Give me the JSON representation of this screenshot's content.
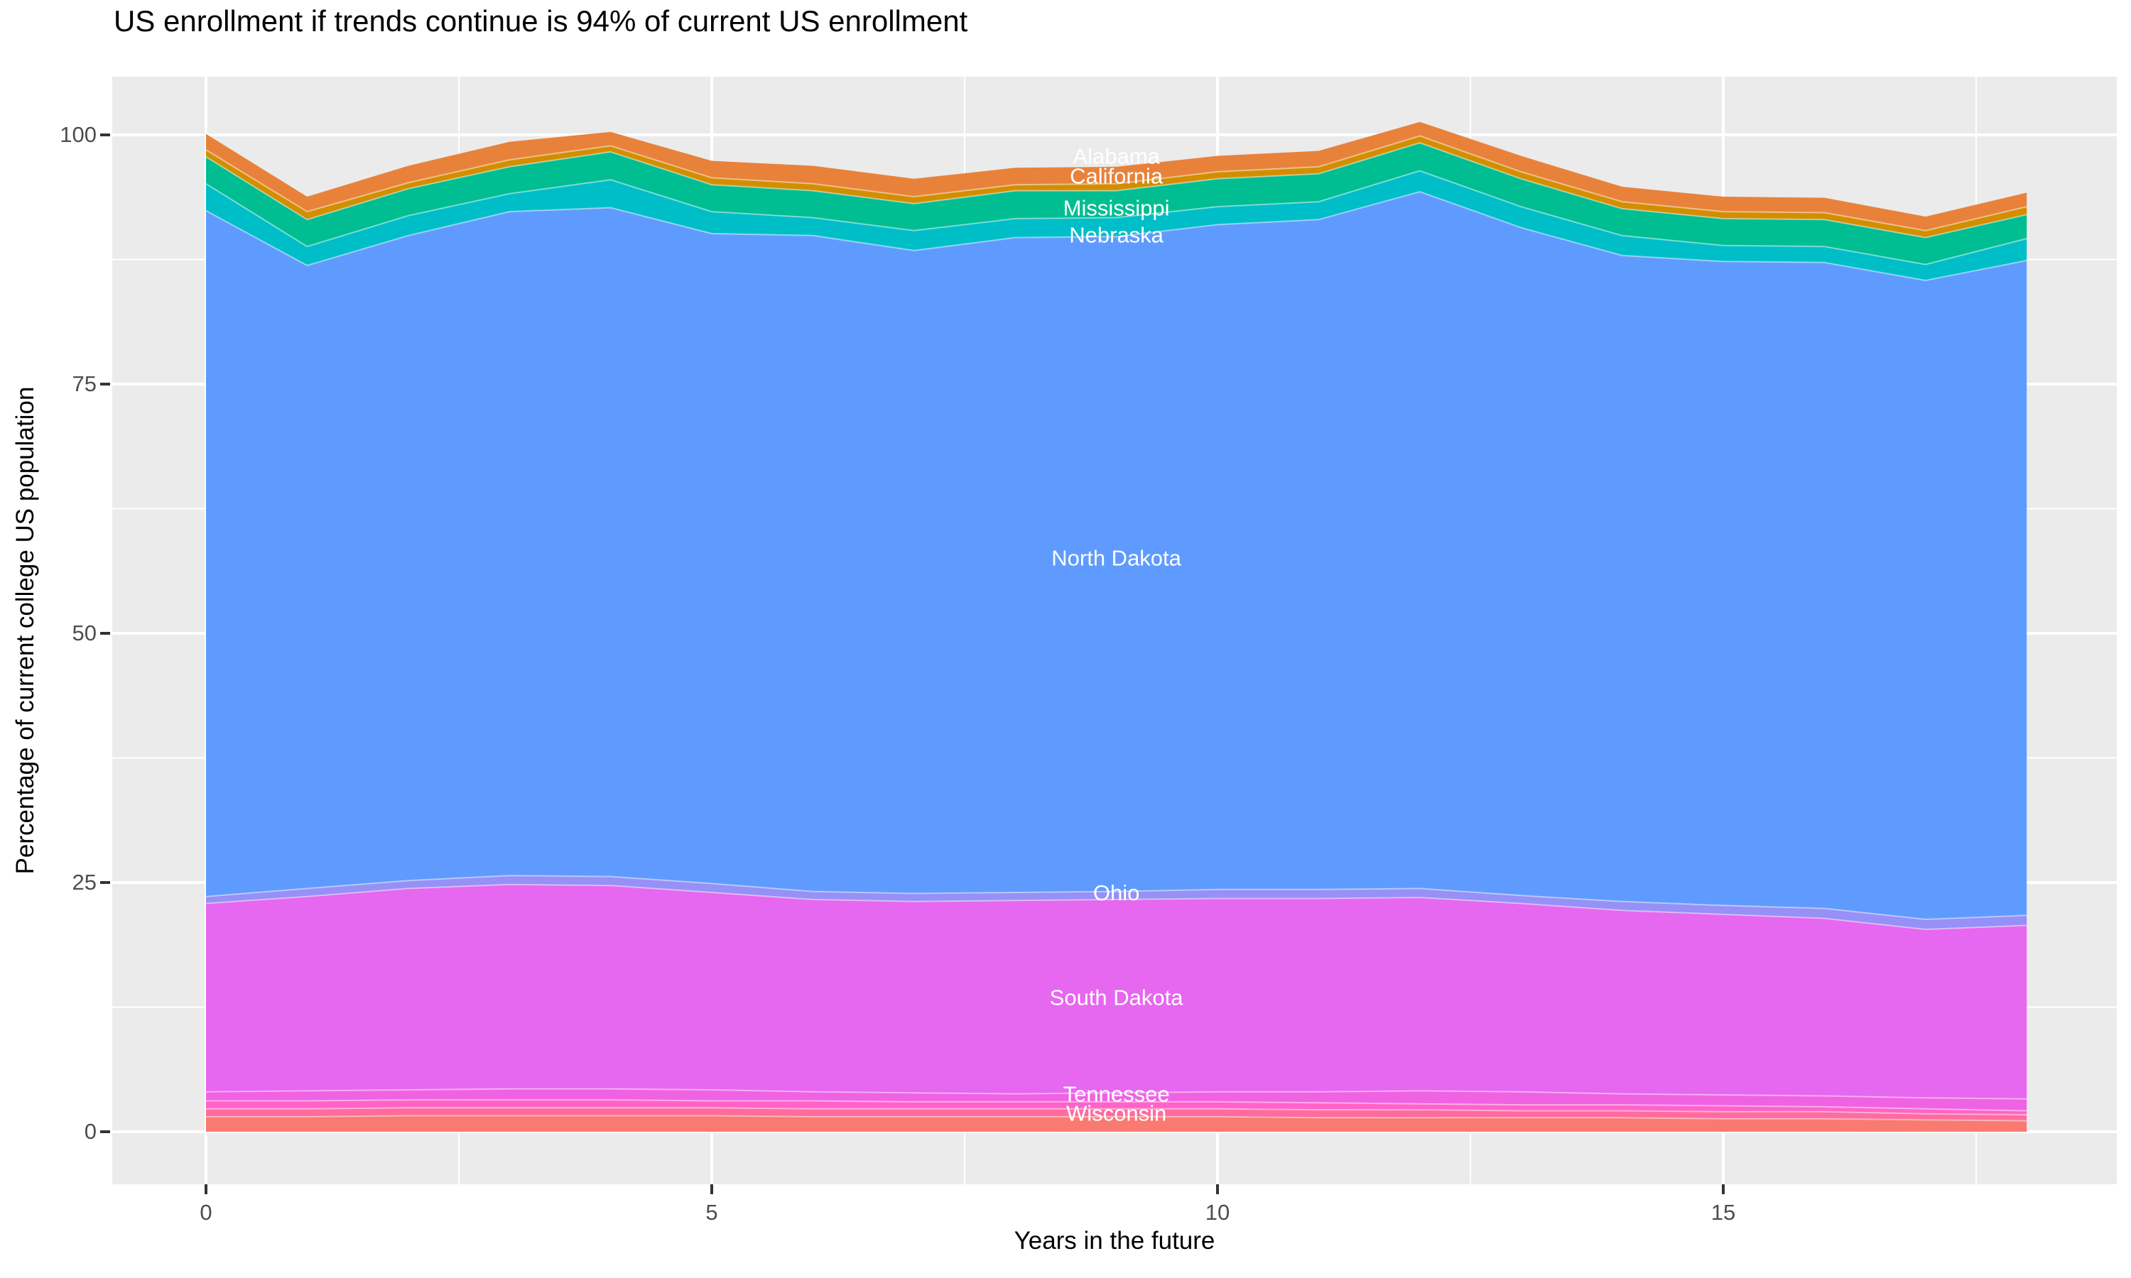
{
  "title": "US enrollment if trends continue is 94% of current US enrollment",
  "axes": {
    "x": {
      "label": "Years in the future",
      "ticks": [
        "0",
        "5",
        "10",
        "15"
      ],
      "range": [
        0,
        18
      ]
    },
    "y": {
      "label": "Percentage of current college US population",
      "ticks": [
        "0",
        "25",
        "50",
        "75",
        "100"
      ],
      "range": [
        0,
        100
      ]
    }
  },
  "colors": {
    "panel_background": "#EBEBEB",
    "gridline": "#FFFFFF",
    "axis_text": "#4D4D4D",
    "tick_mark": "#333333",
    "title_text": "#000000",
    "band_label_text": "#FFFFFF"
  },
  "chart_data": {
    "type": "area",
    "stacked": true,
    "title": "US enrollment if trends continue is 94% of current US enrollment",
    "xlabel": "Years in the future",
    "ylabel": "Percentage of current college US population",
    "x": [
      0,
      1,
      2,
      3,
      4,
      5,
      6,
      7,
      8,
      9,
      10,
      11,
      12,
      13,
      14,
      15,
      16,
      17,
      18
    ],
    "xlim": [
      0,
      18
    ],
    "ylim": [
      0,
      101.5
    ],
    "x_ticks": [
      0,
      5,
      10,
      15
    ],
    "x_minor_ticks": [
      2.5,
      7.5,
      12.5,
      17.5
    ],
    "y_ticks": [
      0,
      25,
      50,
      75,
      100
    ],
    "y_minor_ticks": [
      12.5,
      37.5,
      62.5,
      87.5
    ],
    "grid": true,
    "legend_position": "none",
    "series": [
      {
        "name": "Wisconsin",
        "color": "#F97A70",
        "values": [
          1.5,
          1.5,
          1.6,
          1.6,
          1.6,
          1.6,
          1.5,
          1.5,
          1.5,
          1.5,
          1.5,
          1.4,
          1.4,
          1.4,
          1.4,
          1.3,
          1.3,
          1.2,
          1.1
        ]
      },
      {
        "name": "unlabeled-band-1",
        "color": "#FF6B9D",
        "values": [
          0.8,
          0.8,
          0.8,
          0.8,
          0.8,
          0.8,
          0.8,
          0.8,
          0.8,
          0.8,
          0.8,
          0.8,
          0.8,
          0.7,
          0.7,
          0.7,
          0.7,
          0.6,
          0.6
        ]
      },
      {
        "name": "unlabeled-band-2",
        "color": "#FF63C8",
        "values": [
          0.8,
          0.8,
          0.8,
          0.8,
          0.8,
          0.7,
          0.8,
          0.7,
          0.7,
          0.7,
          0.7,
          0.7,
          0.6,
          0.6,
          0.6,
          0.6,
          0.5,
          0.5,
          0.4
        ]
      },
      {
        "name": "Tennessee",
        "color": "#EF63E3",
        "values": [
          0.9,
          1.0,
          1.0,
          1.1,
          1.1,
          1.1,
          0.9,
          0.9,
          0.8,
          0.9,
          1.0,
          1.1,
          1.3,
          1.3,
          1.1,
          1.1,
          1.1,
          1.1,
          1.2
        ]
      },
      {
        "name": "South Dakota",
        "color": "#E667F0",
        "values": [
          18.9,
          19.5,
          20.2,
          20.5,
          20.4,
          19.8,
          19.3,
          19.2,
          19.4,
          19.4,
          19.4,
          19.4,
          19.4,
          18.9,
          18.4,
          18.1,
          17.8,
          16.9,
          17.4
        ]
      },
      {
        "name": "Ohio",
        "color": "#9690F7",
        "values": [
          0.7,
          0.8,
          0.8,
          0.9,
          0.9,
          0.9,
          0.8,
          0.8,
          0.8,
          0.8,
          0.9,
          0.9,
          0.9,
          0.8,
          0.9,
          0.9,
          1.0,
          1.0,
          1.0
        ]
      },
      {
        "name": "North Dakota",
        "color": "#5F9BFF",
        "values": [
          68.8,
          62.5,
          64.7,
          66.6,
          67.1,
          65.2,
          65.8,
          64.5,
          65.7,
          65.7,
          66.7,
          67.2,
          69.9,
          67.0,
          64.8,
          64.6,
          64.8,
          64.1,
          65.7
        ]
      },
      {
        "name": "Nebraska",
        "color": "#00BEC8",
        "values": [
          2.7,
          1.9,
          2.0,
          1.8,
          2.8,
          2.2,
          1.8,
          2.0,
          1.9,
          1.9,
          1.8,
          1.8,
          2.1,
          2.1,
          2.0,
          1.6,
          1.6,
          1.6,
          2.2
        ]
      },
      {
        "name": "Mississippi",
        "color": "#00BD92",
        "values": [
          2.7,
          2.7,
          2.7,
          2.7,
          2.8,
          2.7,
          2.7,
          2.7,
          2.8,
          2.7,
          2.8,
          2.8,
          2.8,
          2.8,
          2.7,
          2.7,
          2.7,
          2.7,
          2.4
        ]
      },
      {
        "name": "California",
        "color": "#D28E00",
        "values": [
          0.7,
          0.8,
          0.6,
          0.7,
          0.6,
          0.7,
          0.7,
          0.7,
          0.6,
          0.7,
          0.7,
          0.7,
          0.7,
          0.7,
          0.7,
          0.7,
          0.7,
          0.7,
          0.8
        ]
      },
      {
        "name": "Alabama",
        "color": "#E8823B",
        "values": [
          1.6,
          1.5,
          1.7,
          1.8,
          1.4,
          1.7,
          1.8,
          1.8,
          1.7,
          1.7,
          1.6,
          1.6,
          1.4,
          1.6,
          1.5,
          1.5,
          1.5,
          1.4,
          1.4
        ]
      }
    ],
    "band_labels": [
      {
        "text": "Alabama",
        "x": 9,
        "y": 97.9
      },
      {
        "text": "California",
        "x": 9,
        "y": 95.9
      },
      {
        "text": "Mississippi",
        "x": 9,
        "y": 92.7
      },
      {
        "text": "Nebraska",
        "x": 9,
        "y": 90.0
      },
      {
        "text": "North Dakota",
        "x": 9,
        "y": 57.6
      },
      {
        "text": "Ohio",
        "x": 9,
        "y": 24.0
      },
      {
        "text": "South Dakota",
        "x": 9,
        "y": 13.5
      },
      {
        "text": "Tennessee",
        "x": 9,
        "y": 3.8
      },
      {
        "text": "Wisconsin",
        "x": 9,
        "y": 1.9
      }
    ]
  }
}
